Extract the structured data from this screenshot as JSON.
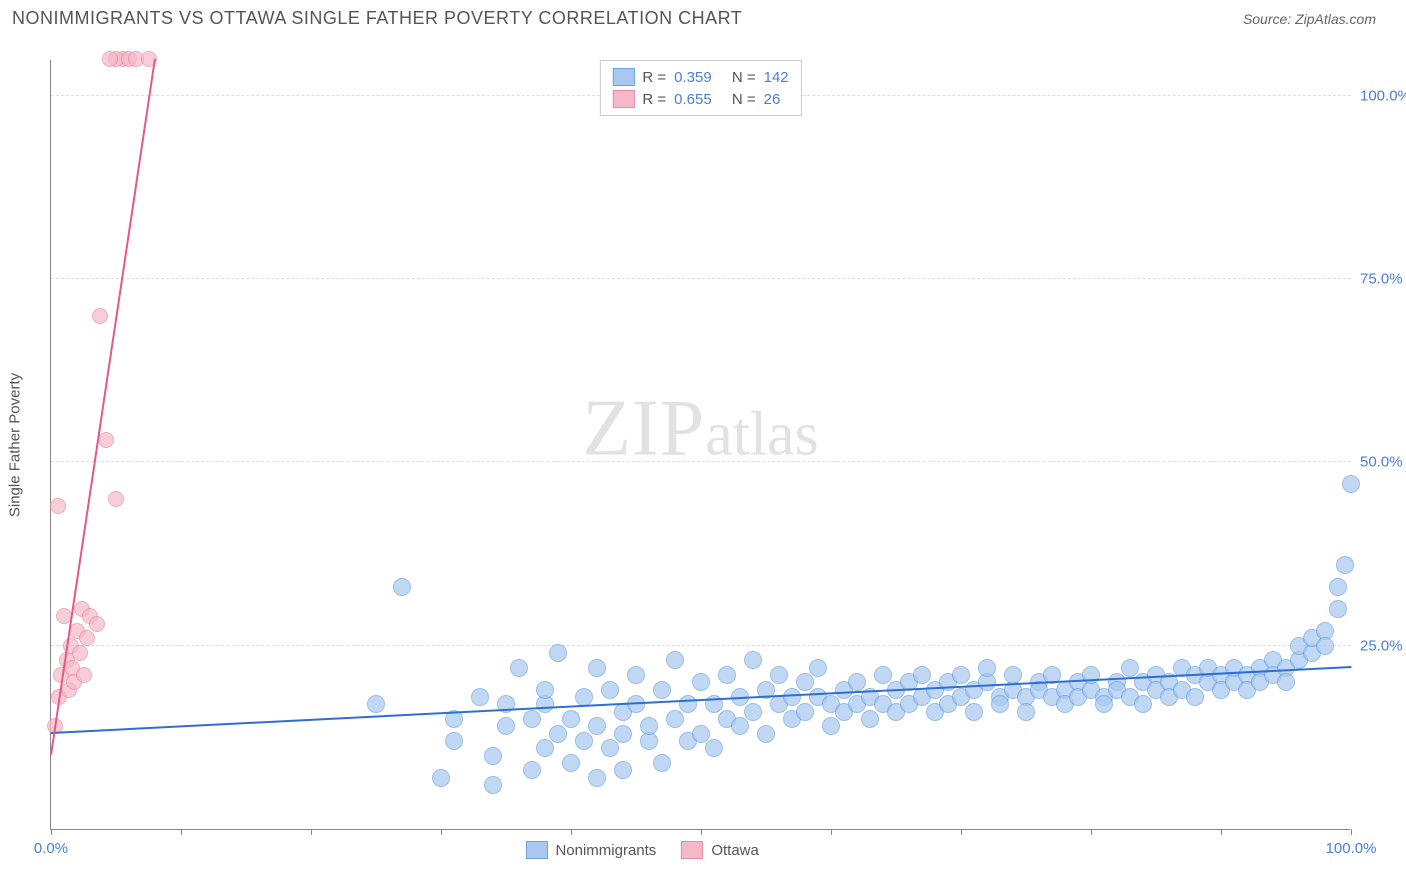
{
  "header": {
    "title": "NONIMMIGRANTS VS OTTAWA SINGLE FATHER POVERTY CORRELATION CHART",
    "source": "Source: ZipAtlas.com"
  },
  "watermark": {
    "zip": "ZIP",
    "atlas": "atlas"
  },
  "chart": {
    "type": "scatter",
    "ylabel": "Single Father Poverty",
    "xlim": [
      0,
      100
    ],
    "ylim": [
      0,
      105
    ],
    "background_color": "#ffffff",
    "grid_color": "#dddddd",
    "axis_color": "#888888",
    "yticks": [
      {
        "value": 25,
        "label": "25.0%"
      },
      {
        "value": 50,
        "label": "50.0%"
      },
      {
        "value": 75,
        "label": "75.0%"
      },
      {
        "value": 100,
        "label": "100.0%"
      }
    ],
    "xtick_values": [
      0,
      10,
      20,
      30,
      40,
      50,
      60,
      70,
      80,
      90,
      100
    ],
    "xtick_labels": {
      "start": "0.0%",
      "end": "100.0%"
    },
    "series": [
      {
        "name": "Nonimmigrants",
        "color_fill": "#a8c8f0",
        "color_stroke": "#6fa3e0",
        "marker_radius": 9,
        "marker_opacity": 0.7,
        "trend": {
          "x1": 0,
          "y1": 13,
          "x2": 100,
          "y2": 22,
          "color": "#2f6fd0",
          "width": 2
        },
        "R": "0.359",
        "N": "142",
        "points": [
          [
            25,
            17
          ],
          [
            27,
            33
          ],
          [
            30,
            7
          ],
          [
            31,
            12
          ],
          [
            31,
            15
          ],
          [
            33,
            18
          ],
          [
            34,
            10
          ],
          [
            34,
            6
          ],
          [
            35,
            14
          ],
          [
            35,
            17
          ],
          [
            36,
            22
          ],
          [
            37,
            15
          ],
          [
            37,
            8
          ],
          [
            38,
            17
          ],
          [
            38,
            11
          ],
          [
            38,
            19
          ],
          [
            39,
            13
          ],
          [
            39,
            24
          ],
          [
            40,
            15
          ],
          [
            40,
            9
          ],
          [
            41,
            18
          ],
          [
            41,
            12
          ],
          [
            42,
            22
          ],
          [
            42,
            7
          ],
          [
            42,
            14
          ],
          [
            43,
            19
          ],
          [
            43,
            11
          ],
          [
            44,
            16
          ],
          [
            44,
            8
          ],
          [
            44,
            13
          ],
          [
            45,
            21
          ],
          [
            45,
            17
          ],
          [
            46,
            12
          ],
          [
            46,
            14
          ],
          [
            47,
            19
          ],
          [
            47,
            9
          ],
          [
            48,
            23
          ],
          [
            48,
            15
          ],
          [
            49,
            17
          ],
          [
            49,
            12
          ],
          [
            50,
            20
          ],
          [
            50,
            13
          ],
          [
            51,
            17
          ],
          [
            51,
            11
          ],
          [
            52,
            21
          ],
          [
            52,
            15
          ],
          [
            53,
            18
          ],
          [
            53,
            14
          ],
          [
            54,
            23
          ],
          [
            54,
            16
          ],
          [
            55,
            19
          ],
          [
            55,
            13
          ],
          [
            56,
            17
          ],
          [
            56,
            21
          ],
          [
            57,
            18
          ],
          [
            57,
            15
          ],
          [
            58,
            20
          ],
          [
            58,
            16
          ],
          [
            59,
            18
          ],
          [
            59,
            22
          ],
          [
            60,
            17
          ],
          [
            60,
            14
          ],
          [
            61,
            19
          ],
          [
            61,
            16
          ],
          [
            62,
            20
          ],
          [
            62,
            17
          ],
          [
            63,
            18
          ],
          [
            63,
            15
          ],
          [
            64,
            21
          ],
          [
            64,
            17
          ],
          [
            65,
            19
          ],
          [
            65,
            16
          ],
          [
            66,
            20
          ],
          [
            66,
            17
          ],
          [
            67,
            18
          ],
          [
            67,
            21
          ],
          [
            68,
            19
          ],
          [
            68,
            16
          ],
          [
            69,
            20
          ],
          [
            69,
            17
          ],
          [
            70,
            18
          ],
          [
            70,
            21
          ],
          [
            71,
            19
          ],
          [
            71,
            16
          ],
          [
            72,
            20
          ],
          [
            72,
            22
          ],
          [
            73,
            18
          ],
          [
            73,
            17
          ],
          [
            74,
            19
          ],
          [
            74,
            21
          ],
          [
            75,
            18
          ],
          [
            75,
            16
          ],
          [
            76,
            20
          ],
          [
            76,
            19
          ],
          [
            77,
            18
          ],
          [
            77,
            21
          ],
          [
            78,
            19
          ],
          [
            78,
            17
          ],
          [
            79,
            20
          ],
          [
            79,
            18
          ],
          [
            80,
            19
          ],
          [
            80,
            21
          ],
          [
            81,
            18
          ],
          [
            81,
            17
          ],
          [
            82,
            20
          ],
          [
            82,
            19
          ],
          [
            83,
            22
          ],
          [
            83,
            18
          ],
          [
            84,
            20
          ],
          [
            84,
            17
          ],
          [
            85,
            21
          ],
          [
            85,
            19
          ],
          [
            86,
            20
          ],
          [
            86,
            18
          ],
          [
            87,
            22
          ],
          [
            87,
            19
          ],
          [
            88,
            21
          ],
          [
            88,
            18
          ],
          [
            89,
            20
          ],
          [
            89,
            22
          ],
          [
            90,
            21
          ],
          [
            90,
            19
          ],
          [
            91,
            20
          ],
          [
            91,
            22
          ],
          [
            92,
            21
          ],
          [
            92,
            19
          ],
          [
            93,
            22
          ],
          [
            93,
            20
          ],
          [
            94,
            23
          ],
          [
            94,
            21
          ],
          [
            95,
            22
          ],
          [
            95,
            20
          ],
          [
            96,
            23
          ],
          [
            96,
            25
          ],
          [
            97,
            24
          ],
          [
            97,
            26
          ],
          [
            98,
            27
          ],
          [
            98,
            25
          ],
          [
            99,
            30
          ],
          [
            99,
            33
          ],
          [
            99.5,
            36
          ],
          [
            100,
            47
          ]
        ]
      },
      {
        "name": "Ottawa",
        "color_fill": "#f5b8c8",
        "color_stroke": "#e88ba5",
        "marker_radius": 8,
        "marker_opacity": 0.7,
        "trend": {
          "x1": 0,
          "y1": 10,
          "x2": 8,
          "y2": 105,
          "color": "#e35a85",
          "width": 2
        },
        "R": "0.655",
        "N": "26",
        "points": [
          [
            0.3,
            14
          ],
          [
            0.5,
            44
          ],
          [
            0.6,
            18
          ],
          [
            0.8,
            21
          ],
          [
            1.0,
            29
          ],
          [
            1.2,
            23
          ],
          [
            1.4,
            19
          ],
          [
            1.5,
            25
          ],
          [
            1.6,
            22
          ],
          [
            1.8,
            20
          ],
          [
            2.0,
            27
          ],
          [
            2.2,
            24
          ],
          [
            2.4,
            30
          ],
          [
            2.5,
            21
          ],
          [
            2.8,
            26
          ],
          [
            3.0,
            29
          ],
          [
            3.5,
            28
          ],
          [
            3.8,
            70
          ],
          [
            4.2,
            53
          ],
          [
            5.0,
            45
          ],
          [
            5.5,
            105
          ],
          [
            5.0,
            105
          ],
          [
            6.0,
            105
          ],
          [
            6.5,
            105
          ],
          [
            4.5,
            105
          ],
          [
            7.5,
            105
          ]
        ]
      }
    ]
  },
  "legend_top": {
    "rows": [
      {
        "swatch_fill": "#a8c8f0",
        "swatch_border": "#6fa3e0",
        "r_label": "R =",
        "r_val": "0.359",
        "n_label": "N =",
        "n_val": "142"
      },
      {
        "swatch_fill": "#f5b8c8",
        "swatch_border": "#e88ba5",
        "r_label": "R =",
        "r_val": "0.655",
        "n_label": "N =",
        "n_val": " 26"
      }
    ]
  },
  "legend_bottom": {
    "items": [
      {
        "swatch_fill": "#a8c8f0",
        "swatch_border": "#6fa3e0",
        "label": "Nonimmigrants"
      },
      {
        "swatch_fill": "#f5b8c8",
        "swatch_border": "#e88ba5",
        "label": "Ottawa"
      }
    ]
  }
}
